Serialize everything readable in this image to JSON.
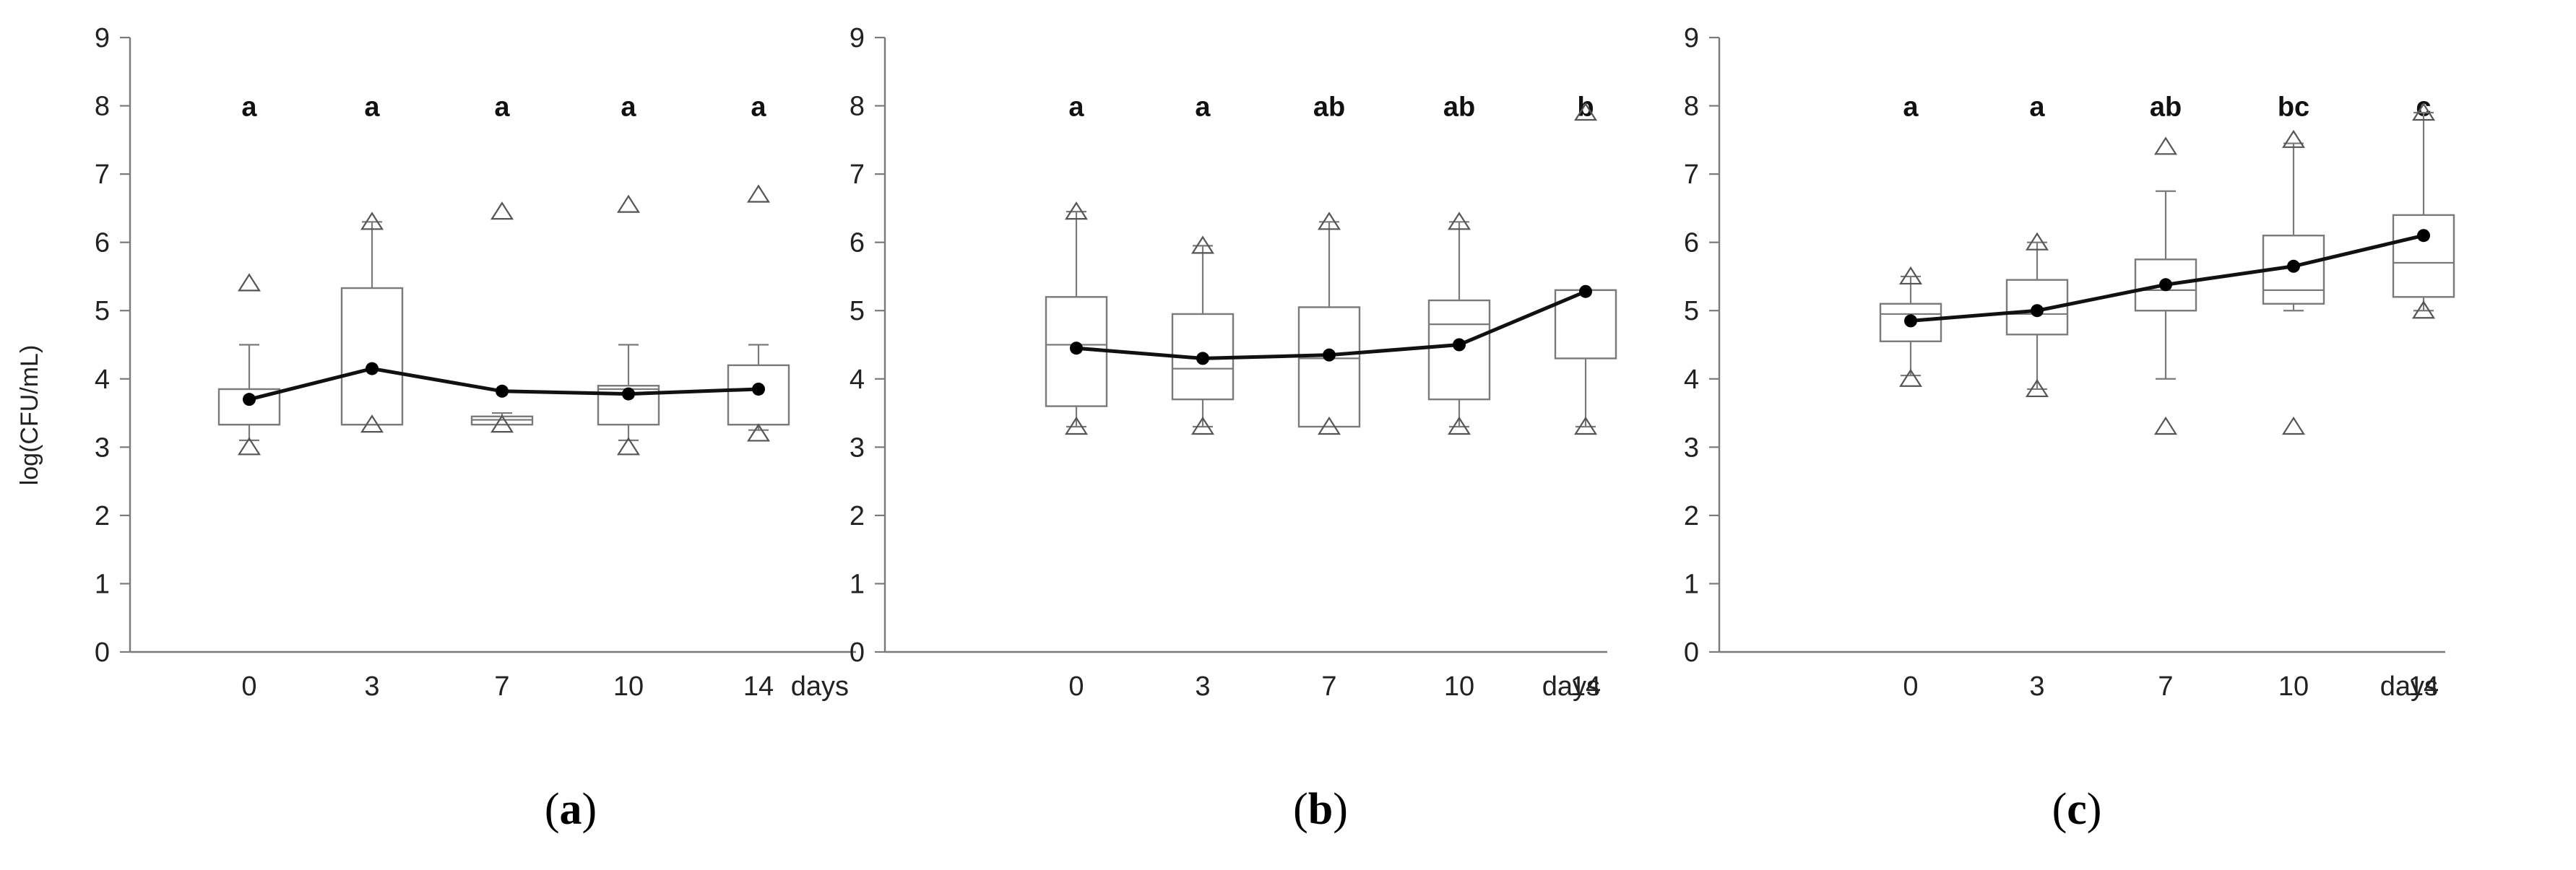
{
  "y_axis_label": "log(CFU/mL)",
  "x_unit": "days",
  "chart_data": [
    {
      "type": "box",
      "panel": "(a)",
      "panel_letter": "a",
      "categories": [
        "0",
        "3",
        "7",
        "10",
        "14"
      ],
      "ylim": [
        0,
        9
      ],
      "yticks": [
        "0",
        "1",
        "2",
        "3",
        "4",
        "5",
        "6",
        "7",
        "8",
        "9"
      ],
      "group_letters": [
        "a",
        "a",
        "a",
        "a",
        "a"
      ],
      "boxes": [
        {
          "q1": 3.33,
          "median": 3.33,
          "q3": 3.85,
          "whisker_low": 3.1,
          "whisker_high": 4.5
        },
        {
          "q1": 3.33,
          "median": 3.33,
          "q3": 5.33,
          "whisker_low": 3.33,
          "whisker_high": 6.3
        },
        {
          "q1": 3.33,
          "median": 3.4,
          "q3": 3.45,
          "whisker_low": 3.33,
          "whisker_high": 3.5
        },
        {
          "q1": 3.33,
          "median": 3.85,
          "q3": 3.9,
          "whisker_low": 3.1,
          "whisker_high": 4.5
        },
        {
          "q1": 3.33,
          "median": 3.33,
          "q3": 4.2,
          "whisker_low": 3.25,
          "whisker_high": 4.5
        }
      ],
      "extremes": [
        [
          3.0,
          5.4
        ],
        [
          3.33,
          6.3
        ],
        [
          3.33,
          6.45
        ],
        [
          3.0,
          6.55
        ],
        [
          3.2,
          6.7
        ]
      ],
      "means": [
        3.7,
        4.15,
        3.82,
        3.78,
        3.85
      ]
    },
    {
      "type": "box",
      "panel": "(b)",
      "panel_letter": "b",
      "categories": [
        "0",
        "3",
        "7",
        "10",
        "14"
      ],
      "ylim": [
        0,
        9
      ],
      "yticks": [
        "0",
        "1",
        "2",
        "3",
        "4",
        "5",
        "6",
        "7",
        "8",
        "9"
      ],
      "group_letters": [
        "a",
        "a",
        "ab",
        "ab",
        "b"
      ],
      "boxes": [
        {
          "q1": 3.6,
          "median": 4.5,
          "q3": 5.2,
          "whisker_low": 3.3,
          "whisker_high": 6.45
        },
        {
          "q1": 3.7,
          "median": 4.15,
          "q3": 4.95,
          "whisker_low": 3.3,
          "whisker_high": 5.95
        },
        {
          "q1": 3.3,
          "median": 4.3,
          "q3": 5.05,
          "whisker_low": 3.3,
          "whisker_high": 6.3
        },
        {
          "q1": 3.7,
          "median": 4.8,
          "q3": 5.15,
          "whisker_low": 3.3,
          "whisker_high": 6.3
        },
        {
          "q1": 4.3,
          "median": 5.3,
          "q3": 5.3,
          "whisker_low": 3.3,
          "whisker_high": 5.3
        }
      ],
      "extremes": [
        [
          3.3,
          6.45
        ],
        [
          3.3,
          5.95
        ],
        [
          3.3,
          6.3
        ],
        [
          3.3,
          6.3
        ],
        [
          3.3,
          7.9
        ]
      ],
      "means": [
        4.45,
        4.3,
        4.35,
        4.5,
        5.28
      ]
    },
    {
      "type": "box",
      "panel": "(c)",
      "panel_letter": "c",
      "categories": [
        "0",
        "3",
        "7",
        "10",
        "14"
      ],
      "ylim": [
        0,
        9
      ],
      "yticks": [
        "0",
        "1",
        "2",
        "3",
        "4",
        "5",
        "6",
        "7",
        "8",
        "9"
      ],
      "group_letters": [
        "a",
        "a",
        "ab",
        "bc",
        "c"
      ],
      "boxes": [
        {
          "q1": 4.55,
          "median": 4.95,
          "q3": 5.1,
          "whisker_low": 4.05,
          "whisker_high": 5.5
        },
        {
          "q1": 4.65,
          "median": 4.95,
          "q3": 5.45,
          "whisker_low": 3.85,
          "whisker_high": 6.0
        },
        {
          "q1": 5.0,
          "median": 5.3,
          "q3": 5.75,
          "whisker_low": 4.0,
          "whisker_high": 6.75
        },
        {
          "q1": 5.1,
          "median": 5.3,
          "q3": 6.1,
          "whisker_low": 5.0,
          "whisker_high": 7.45
        },
        {
          "q1": 5.2,
          "median": 5.7,
          "q3": 6.4,
          "whisker_low": 5.0,
          "whisker_high": 7.9
        }
      ],
      "extremes": [
        [
          4.0,
          5.5
        ],
        [
          3.85,
          6.0
        ],
        [
          3.3,
          7.4
        ],
        [
          3.3,
          7.5
        ],
        [
          5.0,
          7.9
        ]
      ],
      "means": [
        4.85,
        5.0,
        5.38,
        5.65,
        6.1
      ]
    }
  ]
}
